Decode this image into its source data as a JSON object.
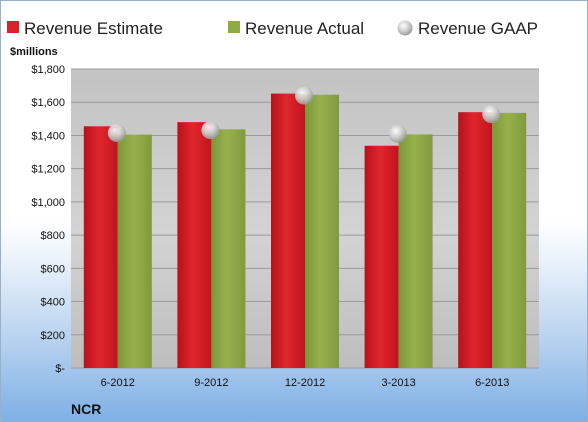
{
  "ticker": "NCR",
  "chart_data": {
    "type": "bar",
    "unit_label": "$millions",
    "categories": [
      "6-2012",
      "9-2012",
      "12-2012",
      "3-2013",
      "6-2013"
    ],
    "series": [
      {
        "name": "Revenue Estimate",
        "kind": "bar",
        "color": "#d8232a",
        "values": [
          1455,
          1480,
          1652,
          1338,
          1540
        ]
      },
      {
        "name": "Revenue Actual",
        "kind": "bar",
        "color": "#8faa47",
        "values": [
          1405,
          1437,
          1645,
          1406,
          1536
        ]
      },
      {
        "name": "Revenue GAAP",
        "kind": "marker",
        "color": "#c9c9c9",
        "values": [
          1415,
          1432,
          1640,
          1410,
          1528
        ]
      }
    ],
    "y_ticks": [
      "$-",
      "$200",
      "$400",
      "$600",
      "$800",
      "$1,000",
      "$1,200",
      "$1,400",
      "$1,600",
      "$1,800"
    ],
    "ylim": [
      0,
      1800
    ],
    "grid": true,
    "legend_position": "top"
  }
}
